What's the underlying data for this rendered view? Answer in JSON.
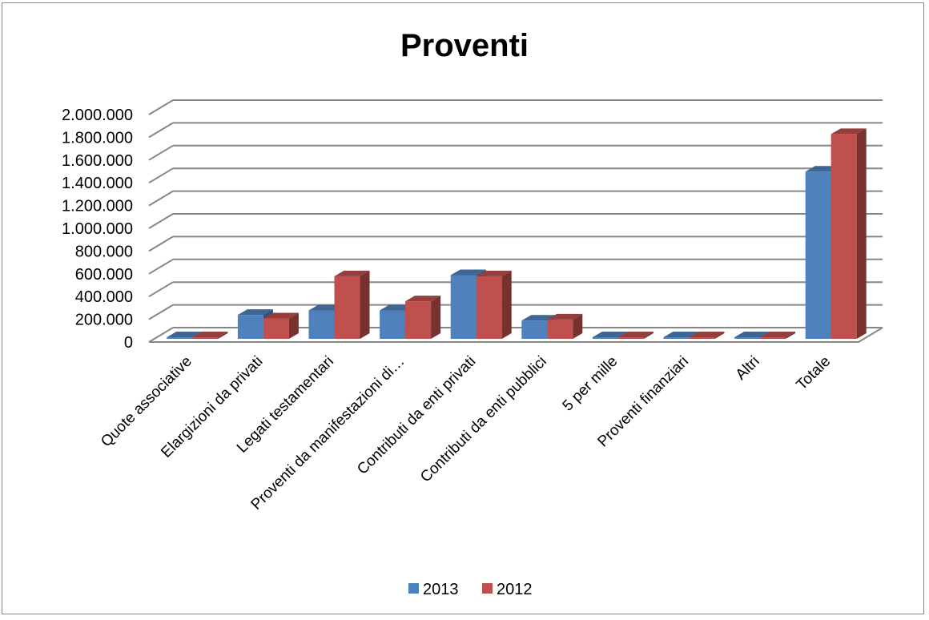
{
  "chart_data": {
    "type": "bar",
    "title": "Proventi",
    "xlabel": "",
    "ylabel": "",
    "ylim": [
      0,
      2000000
    ],
    "y_ticks": [
      "0",
      "200.000",
      "400.000",
      "600.000",
      "800.000",
      "1.000.000",
      "1.200.000",
      "1.400.000",
      "1.600.000",
      "1.800.000",
      "2.000.000"
    ],
    "categories": [
      "Quote associative",
      "Elargizioni da privati",
      "Legati testamentari",
      "Proventi da manifestazioni di…",
      "Contributi da enti privati",
      "Contributi da enti pubblici",
      "5 per mille",
      "Proventi finanziari",
      "Altri",
      "Totale"
    ],
    "series": [
      {
        "name": "2013",
        "color": "#4f81bd",
        "values": [
          2000,
          210000,
          250000,
          250000,
          560000,
          160000,
          5000,
          8000,
          3000,
          1470000
        ]
      },
      {
        "name": "2012",
        "color": "#c0504d",
        "values": [
          2000,
          180000,
          550000,
          330000,
          550000,
          170000,
          5000,
          6000,
          3000,
          1800000
        ]
      }
    ],
    "grid": true,
    "legend_position": "bottom"
  }
}
